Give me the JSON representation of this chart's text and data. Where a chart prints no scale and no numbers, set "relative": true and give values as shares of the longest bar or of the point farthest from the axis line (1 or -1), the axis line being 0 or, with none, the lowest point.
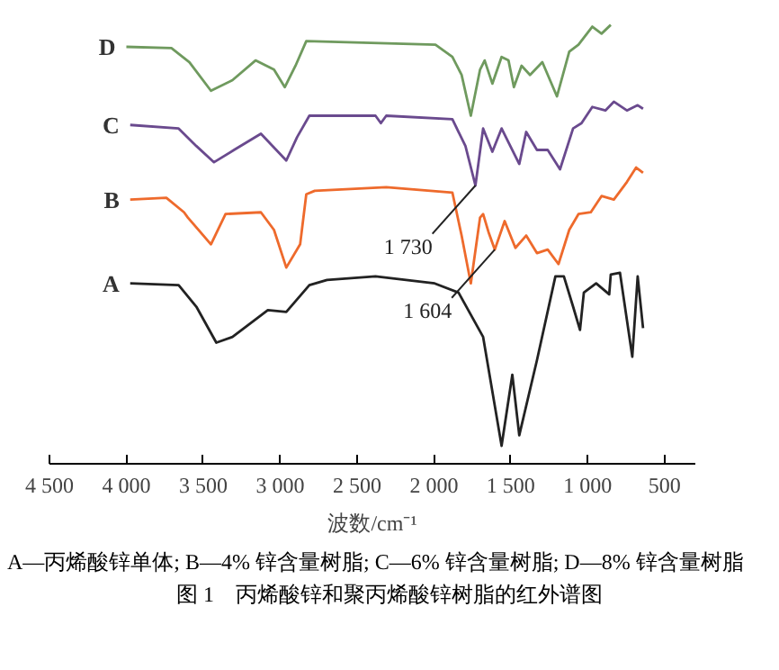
{
  "chart_data": {
    "type": "line",
    "relative": true,
    "xlabel": "波数/cm⁻¹",
    "title": "图 1　丙烯酸锌和聚丙烯酸锌树脂的红外谱图",
    "xlim": [
      4500,
      300
    ],
    "xticks": [
      {
        "value": 4500,
        "label": "4 500"
      },
      {
        "value": 4000,
        "label": "4 000"
      },
      {
        "value": 3500,
        "label": "3 500"
      },
      {
        "value": 3000,
        "label": "3 000"
      },
      {
        "value": 2500,
        "label": "2 500"
      },
      {
        "value": 2000,
        "label": "2 000"
      },
      {
        "value": 1500,
        "label": "1 500"
      },
      {
        "value": 1000,
        "label": "1 000"
      },
      500
    ],
    "grid": false,
    "marker": "none",
    "line_style": "solid",
    "series": [
      {
        "name": "D",
        "color": "#6f9a5e",
        "x": [
          4000,
          3707,
          3590,
          3450,
          3310,
          3160,
          3040,
          2970,
          2900,
          2830,
          1990,
          1880,
          1820,
          1760,
          1700,
          1670,
          1620,
          1560,
          1515,
          1480,
          1430,
          1375,
          1295,
          1200,
          1120,
          1060,
          970,
          910,
          850
        ],
        "values": [
          0.95,
          0.947,
          0.915,
          0.85,
          0.874,
          0.919,
          0.898,
          0.858,
          0.907,
          0.963,
          0.955,
          0.927,
          0.886,
          0.793,
          0.898,
          0.919,
          0.866,
          0.927,
          0.919,
          0.858,
          0.907,
          0.886,
          0.915,
          0.837,
          0.939,
          0.955,
          0.996,
          0.98,
          1.0
        ]
      },
      {
        "name": "C",
        "color": "#6a4a8e",
        "x": [
          3975,
          3660,
          3545,
          3430,
          3300,
          3125,
          2960,
          2890,
          2810,
          2380,
          2345,
          2310,
          1880,
          1795,
          1730,
          1680,
          1620,
          1560,
          1515,
          1445,
          1400,
          1330,
          1260,
          1180,
          1095,
          1040,
          970,
          885,
          830,
          745,
          675,
          640
        ],
        "values": [
          0.772,
          0.764,
          0.724,
          0.687,
          0.715,
          0.752,
          0.691,
          0.744,
          0.793,
          0.793,
          0.776,
          0.793,
          0.785,
          0.724,
          0.634,
          0.764,
          0.711,
          0.764,
          0.732,
          0.683,
          0.756,
          0.715,
          0.715,
          0.671,
          0.764,
          0.776,
          0.813,
          0.805,
          0.825,
          0.805,
          0.817,
          0.809
        ]
      },
      {
        "name": "B",
        "color": "#ee6a2c",
        "x": [
          3975,
          3740,
          3625,
          3600,
          3450,
          3355,
          3125,
          3040,
          2960,
          2870,
          2830,
          2775,
          2310,
          1880,
          1820,
          1760,
          1700,
          1680,
          1645,
          1604,
          1540,
          1470,
          1400,
          1330,
          1260,
          1190,
          1120,
          1060,
          980,
          910,
          830,
          745,
          685,
          640
        ],
        "values": [
          0.602,
          0.606,
          0.573,
          0.561,
          0.5,
          0.569,
          0.573,
          0.533,
          0.447,
          0.5,
          0.614,
          0.622,
          0.63,
          0.618,
          0.52,
          0.411,
          0.561,
          0.569,
          0.528,
          0.488,
          0.553,
          0.492,
          0.52,
          0.48,
          0.488,
          0.455,
          0.533,
          0.569,
          0.573,
          0.61,
          0.602,
          0.642,
          0.675,
          0.663
        ]
      },
      {
        "name": "A",
        "color": "#222222",
        "x": [
          3975,
          3660,
          3545,
          3415,
          3310,
          3080,
          2960,
          2810,
          2695,
          2380,
          1995,
          1840,
          1680,
          1560,
          1490,
          1445,
          1330,
          1210,
          1155,
          1095,
          1050,
          1025,
          945,
          860,
          850,
          790,
          710,
          675,
          640
        ],
        "values": [
          0.411,
          0.407,
          0.358,
          0.276,
          0.289,
          0.35,
          0.346,
          0.407,
          0.419,
          0.427,
          0.411,
          0.39,
          0.289,
          0.041,
          0.203,
          0.065,
          0.236,
          0.427,
          0.427,
          0.358,
          0.305,
          0.39,
          0.411,
          0.386,
          0.431,
          0.435,
          0.244,
          0.427,
          0.309
        ]
      }
    ],
    "annotations": [
      {
        "text": "1 730",
        "x": 1730,
        "y": 0.634
      },
      {
        "text": "1 604",
        "x": 1604,
        "y": 0.488
      },
      "A—丙烯酸锌单体; B—4% 锌含量树脂; C—6% 锌含量树脂; D—8% 锌含量树脂"
    ]
  }
}
